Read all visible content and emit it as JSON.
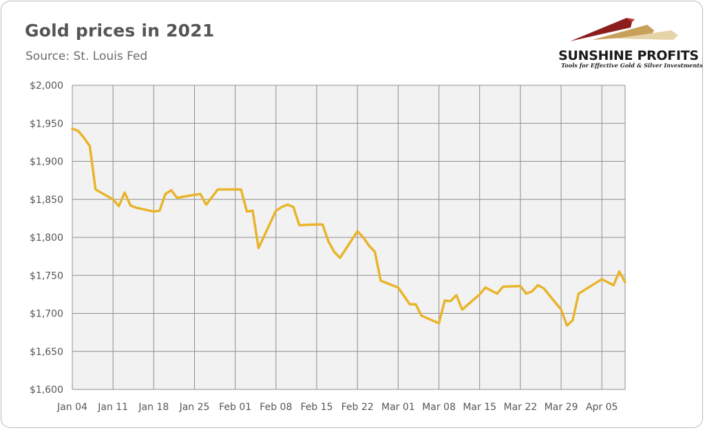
{
  "title": "Gold prices in 2021",
  "subtitle": "Source: St. Louis Fed",
  "logo": {
    "name": "SUNSHINE PROFITS",
    "tagline": "Tools for Effective Gold & Silver Investments"
  },
  "colors": {
    "line": "#E8B42A",
    "grid": "#8c8c8c",
    "plot_background": "#f2f2f2",
    "text": "#555555"
  },
  "chart_data": {
    "type": "line",
    "title": "Gold prices in 2021",
    "subtitle": "Source: St. Louis Fed",
    "x_unit": "trading day (2021)",
    "ylim": [
      1600,
      2000
    ],
    "xlim": [
      "2021-01-04",
      "2021-04-09"
    ],
    "grid": true,
    "y_ticks": [
      1600,
      1650,
      1700,
      1750,
      1800,
      1850,
      1900,
      1950,
      2000
    ],
    "y_tick_labels": [
      "$1,600",
      "$1,650",
      "$1,700",
      "$1,750",
      "$1,800",
      "$1,850",
      "$1,900",
      "$1,950",
      "$2,000"
    ],
    "x_ticks": [
      "2021-01-04",
      "2021-01-11",
      "2021-01-18",
      "2021-01-25",
      "2021-02-01",
      "2021-02-08",
      "2021-02-15",
      "2021-02-22",
      "2021-03-01",
      "2021-03-08",
      "2021-03-15",
      "2021-03-22",
      "2021-03-29",
      "2021-04-05"
    ],
    "x_tick_labels": [
      "Jan 04",
      "Jan 11",
      "Jan 18",
      "Jan 25",
      "Feb 01",
      "Feb 08",
      "Feb 15",
      "Feb 22",
      "Mar 01",
      "Mar 08",
      "Mar 15",
      "Mar 22",
      "Mar 29",
      "Apr 05"
    ],
    "series": [
      {
        "points": [
          [
            "2021-01-04",
            1943
          ],
          [
            "2021-01-05",
            1940
          ],
          [
            "2021-01-06",
            1931
          ],
          [
            "2021-01-07",
            1920
          ],
          [
            "2021-01-08",
            1863
          ],
          [
            "2021-01-11",
            1850
          ],
          [
            "2021-01-12",
            1841
          ],
          [
            "2021-01-13",
            1859
          ],
          [
            "2021-01-14",
            1842
          ],
          [
            "2021-01-15",
            1839
          ],
          [
            "2021-01-18",
            1834
          ],
          [
            "2021-01-19",
            1835
          ],
          [
            "2021-01-20",
            1857
          ],
          [
            "2021-01-21",
            1862
          ],
          [
            "2021-01-22",
            1852
          ],
          [
            "2021-01-25",
            1856
          ],
          [
            "2021-01-26",
            1857
          ],
          [
            "2021-01-27",
            1843
          ],
          [
            "2021-01-28",
            1853
          ],
          [
            "2021-01-29",
            1863
          ],
          [
            "2021-02-01",
            1863
          ],
          [
            "2021-02-02",
            1863
          ],
          [
            "2021-02-03",
            1834
          ],
          [
            "2021-02-04",
            1835
          ],
          [
            "2021-02-05",
            1786
          ],
          [
            "2021-02-08",
            1835
          ],
          [
            "2021-02-09",
            1840
          ],
          [
            "2021-02-10",
            1843
          ],
          [
            "2021-02-11",
            1840
          ],
          [
            "2021-02-12",
            1816
          ],
          [
            "2021-02-15",
            1817
          ],
          [
            "2021-02-16",
            1817
          ],
          [
            "2021-02-17",
            1795
          ],
          [
            "2021-02-18",
            1781
          ],
          [
            "2021-02-19",
            1773
          ],
          [
            "2021-02-22",
            1808
          ],
          [
            "2021-02-23",
            1800
          ],
          [
            "2021-02-24",
            1789
          ],
          [
            "2021-02-25",
            1781
          ],
          [
            "2021-02-26",
            1743
          ],
          [
            "2021-03-01",
            1734
          ],
          [
            "2021-03-02",
            1723
          ],
          [
            "2021-03-03",
            1712
          ],
          [
            "2021-03-04",
            1712
          ],
          [
            "2021-03-05",
            1697
          ],
          [
            "2021-03-08",
            1687
          ],
          [
            "2021-03-09",
            1717
          ],
          [
            "2021-03-10",
            1716
          ],
          [
            "2021-03-11",
            1724
          ],
          [
            "2021-03-12",
            1705
          ],
          [
            "2021-03-15",
            1725
          ],
          [
            "2021-03-16",
            1734
          ],
          [
            "2021-03-17",
            1730
          ],
          [
            "2021-03-18",
            1726
          ],
          [
            "2021-03-19",
            1735
          ],
          [
            "2021-03-22",
            1736
          ],
          [
            "2021-03-23",
            1726
          ],
          [
            "2021-03-24",
            1729
          ],
          [
            "2021-03-25",
            1737
          ],
          [
            "2021-03-26",
            1733
          ],
          [
            "2021-03-29",
            1705
          ],
          [
            "2021-03-30",
            1684
          ],
          [
            "2021-03-31",
            1691
          ],
          [
            "2021-04-01",
            1726
          ],
          [
            "2021-04-05",
            1745
          ],
          [
            "2021-04-06",
            1741
          ],
          [
            "2021-04-07",
            1737
          ],
          [
            "2021-04-08",
            1755
          ],
          [
            "2021-04-09",
            1741
          ]
        ]
      }
    ]
  }
}
